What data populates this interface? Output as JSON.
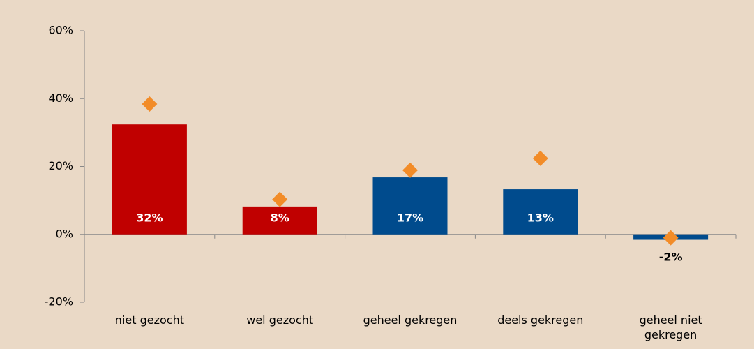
{
  "chart_data": {
    "type": "bar",
    "categories": [
      "niet gezocht",
      "wel gezocht",
      "geheel gekregen",
      "deels gekregen",
      "geheel niet gekregen"
    ],
    "values": [
      32.4,
      8.2,
      16.8,
      13.3,
      -1.6
    ],
    "value_labels": [
      "32%",
      "8%",
      "17%",
      "13%",
      "-2%"
    ],
    "colors": [
      "#c00000",
      "#c00000",
      "#004b8d",
      "#004b8d",
      "#004b8d"
    ],
    "markers": {
      "type": "scatter",
      "marker": "diamond",
      "color": "#f28c28",
      "values": [
        38.4,
        10.3,
        18.9,
        22.4,
        -1.0
      ]
    },
    "ylim": [
      -20,
      60
    ],
    "yticks": [
      {
        "value": -20,
        "label": "-20%"
      },
      {
        "value": 0,
        "label": "0%"
      },
      {
        "value": 20,
        "label": "20%"
      },
      {
        "value": 40,
        "label": "40%"
      },
      {
        "value": 60,
        "label": "60%"
      }
    ],
    "grid": false
  }
}
